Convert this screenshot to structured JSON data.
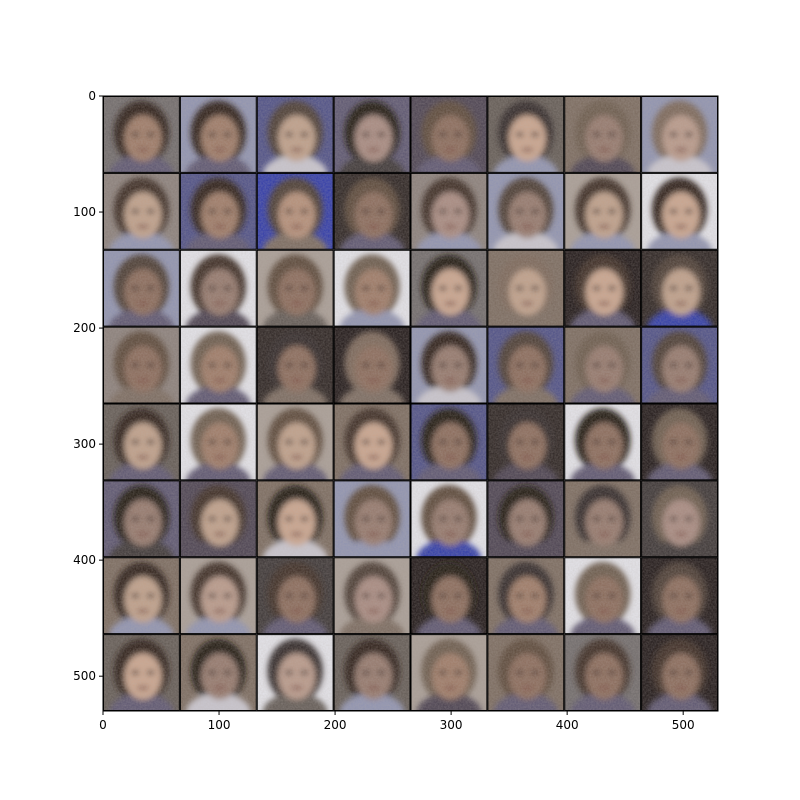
{
  "image": {
    "description_free": true,
    "grid": {
      "rows": 8,
      "cols": 8
    },
    "tile_size_data_units": 66,
    "extent": {
      "x": [
        0,
        530
      ],
      "y": [
        530,
        0
      ]
    }
  },
  "axes": {
    "x_ticks": [
      {
        "value": 0,
        "label": "0"
      },
      {
        "value": 100,
        "label": "100"
      },
      {
        "value": 200,
        "label": "200"
      },
      {
        "value": 300,
        "label": "300"
      },
      {
        "value": 400,
        "label": "400"
      },
      {
        "value": 500,
        "label": "500"
      }
    ],
    "y_ticks": [
      {
        "value": 0,
        "label": "0"
      },
      {
        "value": 100,
        "label": "100"
      },
      {
        "value": 200,
        "label": "200"
      },
      {
        "value": 300,
        "label": "300"
      },
      {
        "value": 400,
        "label": "400"
      },
      {
        "value": 500,
        "label": "500"
      }
    ]
  },
  "palettes": {
    "bg": [
      "#6f6a6a",
      "#8a7f7a",
      "#4d4f86",
      "#5b5570",
      "#4a4150",
      "#625a54",
      "#7a6a5e",
      "#8f93b0",
      "#3a3434",
      "#c9c6cf",
      "#2f3aa8",
      "#2a2220",
      "#a89d95",
      "#e4e4ea",
      "#6a5f66",
      "#1e1616"
    ],
    "skin": [
      "#b58f78",
      "#9e7a66",
      "#c0a08a",
      "#8a6a5a",
      "#a88a80",
      "#caa58e",
      "#94786c",
      "#b99a8a"
    ],
    "hair": [
      "#2a1c16",
      "#3a2a22",
      "#4a3a30",
      "#1a1210",
      "#5a4638",
      "#6b5a4c",
      "#2e2626",
      "#7a6658"
    ]
  },
  "tiles": [
    [
      0,
      0,
      1,
      0
    ],
    [
      7,
      0,
      1,
      0
    ],
    [
      2,
      2,
      2,
      6
    ],
    [
      3,
      3,
      4,
      5
    ],
    [
      4,
      4,
      3,
      0
    ],
    [
      5,
      6,
      5,
      4
    ],
    [
      6,
      5,
      6,
      1
    ],
    [
      7,
      7,
      7,
      6
    ],
    [
      1,
      1,
      2,
      4
    ],
    [
      2,
      8,
      1,
      0
    ],
    [
      10,
      2,
      0,
      3
    ],
    [
      11,
      4,
      3,
      0
    ],
    [
      1,
      1,
      4,
      4
    ],
    [
      7,
      2,
      6,
      6
    ],
    [
      12,
      1,
      2,
      4
    ],
    [
      13,
      0,
      5,
      4
    ],
    [
      7,
      2,
      3,
      0
    ],
    [
      13,
      1,
      6,
      1
    ],
    [
      12,
      4,
      3,
      2
    ],
    [
      13,
      5,
      1,
      4
    ],
    [
      0,
      3,
      5,
      0
    ],
    [
      6,
      7,
      2,
      3
    ],
    [
      15,
      1,
      5,
      0
    ],
    [
      11,
      2,
      2,
      7
    ],
    [
      1,
      4,
      3,
      3
    ],
    [
      13,
      5,
      1,
      0
    ],
    [
      11,
      6,
      3,
      3
    ],
    [
      15,
      7,
      3,
      3
    ],
    [
      7,
      0,
      6,
      6
    ],
    [
      2,
      2,
      3,
      3
    ],
    [
      6,
      5,
      6,
      0
    ],
    [
      2,
      2,
      6,
      0
    ],
    [
      5,
      0,
      2,
      0
    ],
    [
      13,
      5,
      1,
      0
    ],
    [
      12,
      4,
      2,
      0
    ],
    [
      6,
      1,
      5,
      0
    ],
    [
      2,
      3,
      3,
      0
    ],
    [
      11,
      6,
      3,
      1
    ],
    [
      13,
      3,
      3,
      0
    ],
    [
      15,
      5,
      3,
      0
    ],
    [
      3,
      3,
      6,
      5
    ],
    [
      4,
      1,
      2,
      1
    ],
    [
      6,
      3,
      5,
      6
    ],
    [
      7,
      4,
      6,
      4
    ],
    [
      13,
      4,
      6,
      7
    ],
    [
      4,
      3,
      6,
      1
    ],
    [
      6,
      6,
      6,
      3
    ],
    [
      8,
      5,
      4,
      5
    ],
    [
      6,
      0,
      2,
      4
    ],
    [
      12,
      1,
      7,
      4
    ],
    [
      8,
      1,
      3,
      0
    ],
    [
      12,
      2,
      4,
      3
    ],
    [
      15,
      3,
      3,
      0
    ],
    [
      6,
      6,
      1,
      0
    ],
    [
      13,
      5,
      3,
      0
    ],
    [
      15,
      2,
      3,
      0
    ],
    [
      5,
      0,
      5,
      0
    ],
    [
      6,
      3,
      6,
      6
    ],
    [
      13,
      6,
      7,
      2
    ],
    [
      5,
      0,
      6,
      4
    ],
    [
      12,
      5,
      1,
      1
    ],
    [
      6,
      4,
      3,
      0
    ],
    [
      0,
      1,
      3,
      0
    ],
    [
      15,
      1,
      3,
      0
    ]
  ]
}
